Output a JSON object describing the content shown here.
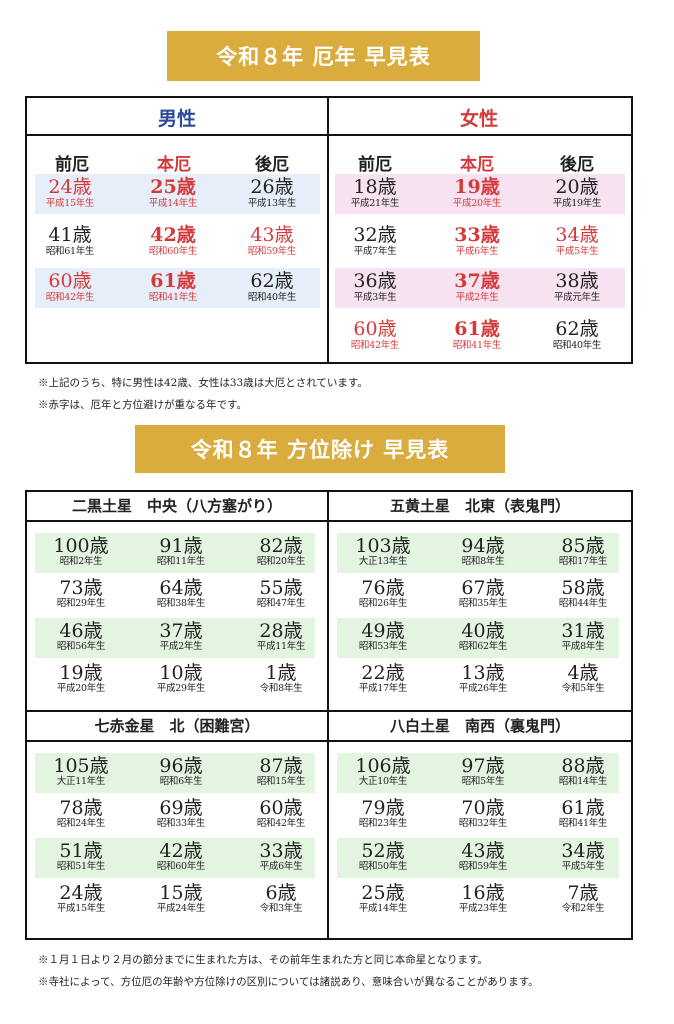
{
  "yakudoshi": {
    "title": "令和８年 厄年 早見表",
    "male_label": "男性",
    "female_label": "女性",
    "col_pre": "前厄",
    "col_main": "本厄",
    "col_post": "後厄",
    "male": [
      [
        {
          "age": "24歳",
          "era": "平成15年生"
        },
        {
          "age": "25歳",
          "era": "平成14年生"
        },
        {
          "age": "26歳",
          "era": "平成13年生"
        }
      ],
      [
        {
          "age": "41歳",
          "era": "昭和61年生"
        },
        {
          "age": "42歳",
          "era": "昭和60年生"
        },
        {
          "age": "43歳",
          "era": "昭和59年生"
        }
      ],
      [
        {
          "age": "60歳",
          "era": "昭和42年生"
        },
        {
          "age": "61歳",
          "era": "昭和41年生"
        },
        {
          "age": "62歳",
          "era": "昭和40年生"
        }
      ]
    ],
    "female": [
      [
        {
          "age": "18歳",
          "era": "平成21年生"
        },
        {
          "age": "19歳",
          "era": "平成20年生"
        },
        {
          "age": "20歳",
          "era": "平成19年生"
        }
      ],
      [
        {
          "age": "32歳",
          "era": "平成7年生"
        },
        {
          "age": "33歳",
          "era": "平成6年生"
        },
        {
          "age": "34歳",
          "era": "平成5年生"
        }
      ],
      [
        {
          "age": "36歳",
          "era": "平成3年生"
        },
        {
          "age": "37歳",
          "era": "平成2年生"
        },
        {
          "age": "38歳",
          "era": "平成元年生"
        }
      ],
      [
        {
          "age": "60歳",
          "era": "昭和42年生"
        },
        {
          "age": "61歳",
          "era": "昭和41年生"
        },
        {
          "age": "62歳",
          "era": "昭和40年生"
        }
      ]
    ],
    "note1": "※上記のうち、特に男性は42歳、女性は33歳は大厄とされています。",
    "note2": "※赤字は、厄年と方位避けが重なる年です。"
  },
  "houi": {
    "title": "令和８年 方位除け 早見表",
    "quadrants": [
      {
        "heading": "二黒土星　中央（八方塞がり）",
        "rows": [
          [
            {
              "age": "100歳",
              "era": "昭和2年生"
            },
            {
              "age": "91歳",
              "era": "昭和11年生"
            },
            {
              "age": "82歳",
              "era": "昭和20年生"
            }
          ],
          [
            {
              "age": "73歳",
              "era": "昭和29年生"
            },
            {
              "age": "64歳",
              "era": "昭和38年生"
            },
            {
              "age": "55歳",
              "era": "昭和47年生"
            }
          ],
          [
            {
              "age": "46歳",
              "era": "昭和56年生"
            },
            {
              "age": "37歳",
              "era": "平成2年生"
            },
            {
              "age": "28歳",
              "era": "平成11年生"
            }
          ],
          [
            {
              "age": "19歳",
              "era": "平成20年生"
            },
            {
              "age": "10歳",
              "era": "平成29年生"
            },
            {
              "age": "1歳",
              "era": "令和8年生"
            }
          ]
        ]
      },
      {
        "heading": "五黄土星　北東（表鬼門）",
        "rows": [
          [
            {
              "age": "103歳",
              "era": "大正13年生"
            },
            {
              "age": "94歳",
              "era": "昭和8年生"
            },
            {
              "age": "85歳",
              "era": "昭和17年生"
            }
          ],
          [
            {
              "age": "76歳",
              "era": "昭和26年生"
            },
            {
              "age": "67歳",
              "era": "昭和35年生"
            },
            {
              "age": "58歳",
              "era": "昭和44年生"
            }
          ],
          [
            {
              "age": "49歳",
              "era": "昭和53年生"
            },
            {
              "age": "40歳",
              "era": "昭和62年生"
            },
            {
              "age": "31歳",
              "era": "平成8年生"
            }
          ],
          [
            {
              "age": "22歳",
              "era": "平成17年生"
            },
            {
              "age": "13歳",
              "era": "平成26年生"
            },
            {
              "age": "4歳",
              "era": "令和5年生"
            }
          ]
        ]
      },
      {
        "heading": "七赤金星　北（困難宮）",
        "rows": [
          [
            {
              "age": "105歳",
              "era": "大正11年生"
            },
            {
              "age": "96歳",
              "era": "昭和6年生"
            },
            {
              "age": "87歳",
              "era": "昭和15年生"
            }
          ],
          [
            {
              "age": "78歳",
              "era": "昭和24年生"
            },
            {
              "age": "69歳",
              "era": "昭和33年生"
            },
            {
              "age": "60歳",
              "era": "昭和42年生"
            }
          ],
          [
            {
              "age": "51歳",
              "era": "昭和51年生"
            },
            {
              "age": "42歳",
              "era": "昭和60年生"
            },
            {
              "age": "33歳",
              "era": "平成6年生"
            }
          ],
          [
            {
              "age": "24歳",
              "era": "平成15年生"
            },
            {
              "age": "15歳",
              "era": "平成24年生"
            },
            {
              "age": "6歳",
              "era": "令和3年生"
            }
          ]
        ]
      },
      {
        "heading": "八白土星　南西（裏鬼門）",
        "rows": [
          [
            {
              "age": "106歳",
              "era": "大正10年生"
            },
            {
              "age": "97歳",
              "era": "昭和5年生"
            },
            {
              "age": "88歳",
              "era": "昭和14年生"
            }
          ],
          [
            {
              "age": "79歳",
              "era": "昭和23年生"
            },
            {
              "age": "70歳",
              "era": "昭和32年生"
            },
            {
              "age": "61歳",
              "era": "昭和41年生"
            }
          ],
          [
            {
              "age": "52歳",
              "era": "昭和50年生"
            },
            {
              "age": "43歳",
              "era": "昭和59年生"
            },
            {
              "age": "34歳",
              "era": "平成5年生"
            }
          ],
          [
            {
              "age": "25歳",
              "era": "平成14年生"
            },
            {
              "age": "16歳",
              "era": "平成23年生"
            },
            {
              "age": "7歳",
              "era": "令和2年生"
            }
          ]
        ]
      }
    ],
    "note1": "※１月１日より２月の節分までに生まれた方は、その前年生まれた方と同じ本命星となります。",
    "note2": "※寺社によって、方位厄の年齢や方位除けの区別については諸説あり、意味合いが異なることがあります。"
  },
  "colors": {
    "gold": "#d9ac3d",
    "red": "#d53a3a",
    "blue": "#2b4a9a",
    "band_blue": "#e5eef9",
    "band_pink": "#f7e2f1",
    "band_green": "#e3f4e0"
  }
}
